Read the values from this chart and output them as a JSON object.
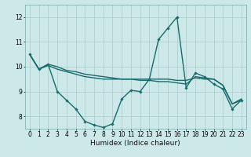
{
  "title": "",
  "xlabel": "Humidex (Indice chaleur)",
  "ylabel": "",
  "xlim": [
    -0.5,
    23.5
  ],
  "ylim": [
    7.5,
    12.5
  ],
  "yticks": [
    8,
    9,
    10,
    11,
    12
  ],
  "xticks": [
    0,
    1,
    2,
    3,
    4,
    5,
    6,
    7,
    8,
    9,
    10,
    11,
    12,
    13,
    14,
    15,
    16,
    17,
    18,
    19,
    20,
    21,
    22,
    23
  ],
  "background_color": "#cde8e8",
  "grid_color": "#aacccc",
  "line_color": "#1a6b6b",
  "series": [
    {
      "x": [
        0,
        1,
        2,
        3,
        4,
        5,
        6,
        7,
        8,
        9,
        10,
        11,
        12,
        13,
        14,
        15,
        16,
        17,
        18,
        19,
        20,
        21,
        22,
        23
      ],
      "y": [
        10.5,
        9.9,
        10.1,
        10.0,
        9.85,
        9.8,
        9.7,
        9.65,
        9.6,
        9.55,
        9.5,
        9.5,
        9.45,
        9.45,
        9.4,
        9.4,
        9.35,
        9.3,
        9.6,
        9.55,
        9.5,
        9.25,
        8.5,
        8.7
      ],
      "marker": false,
      "linewidth": 1.0
    },
    {
      "x": [
        0,
        1,
        2,
        3,
        4,
        5,
        6,
        7,
        8,
        9,
        10,
        11,
        12,
        13,
        14,
        15,
        16,
        17,
        18,
        19,
        20,
        21,
        22,
        23
      ],
      "y": [
        10.5,
        9.9,
        10.05,
        9.9,
        9.8,
        9.7,
        9.6,
        9.55,
        9.5,
        9.5,
        9.5,
        9.5,
        9.5,
        9.5,
        9.5,
        9.5,
        9.45,
        9.45,
        9.55,
        9.5,
        9.5,
        9.25,
        8.5,
        8.65
      ],
      "marker": false,
      "linewidth": 1.0
    },
    {
      "x": [
        0,
        1,
        2,
        3,
        4,
        5,
        6,
        7,
        8,
        9,
        10,
        11,
        12,
        13,
        14,
        15,
        16,
        17,
        18,
        19,
        20,
        21,
        22,
        23
      ],
      "y": [
        10.5,
        9.9,
        10.1,
        9.0,
        8.65,
        8.3,
        7.8,
        7.65,
        7.55,
        7.7,
        8.7,
        9.05,
        9.0,
        9.5,
        11.1,
        11.55,
        12.0,
        9.15,
        9.75,
        9.6,
        9.3,
        9.1,
        8.3,
        8.65
      ],
      "marker": true,
      "linewidth": 1.0
    }
  ]
}
